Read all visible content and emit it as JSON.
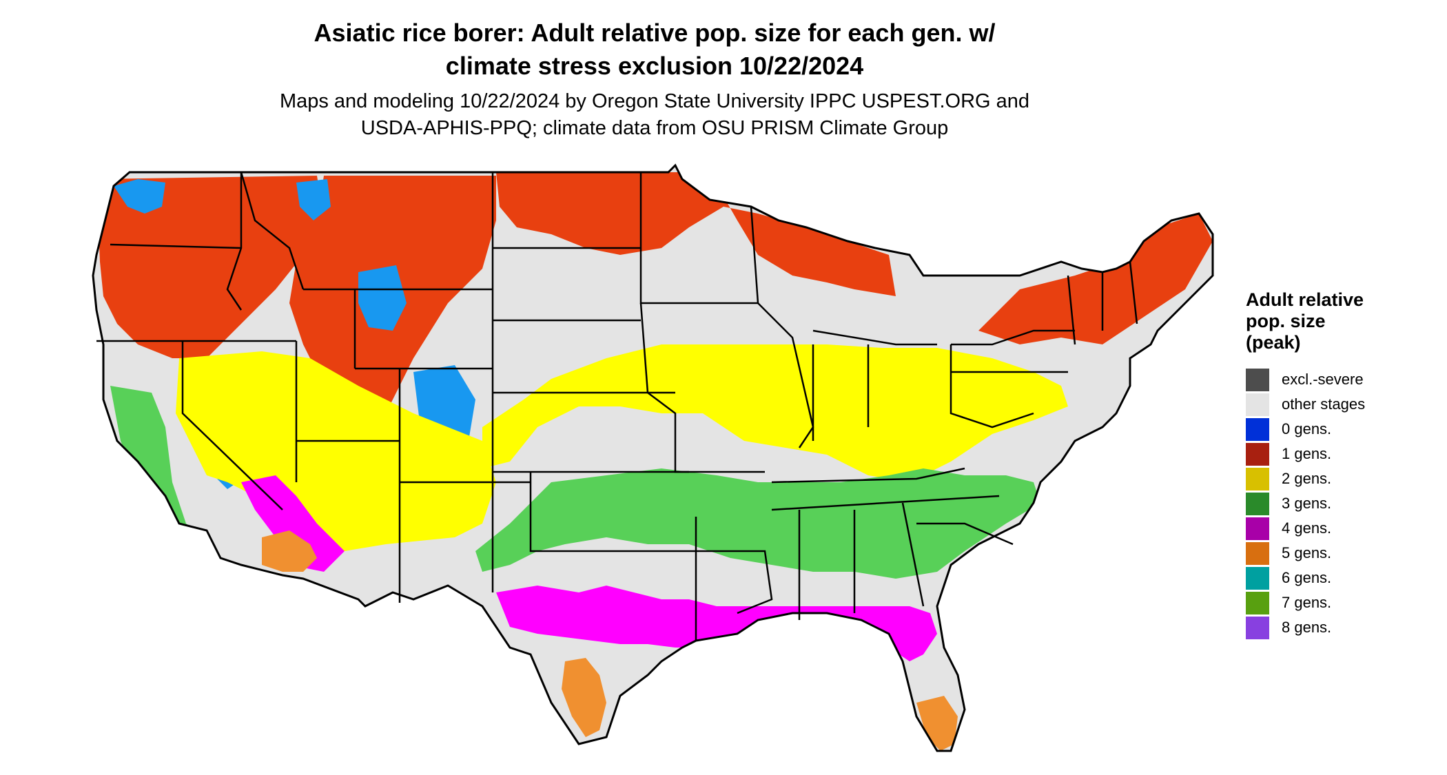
{
  "title": [
    "Asiatic rice borer: Adult relative pop. size for each gen. w/",
    "climate stress exclusion 10/22/2024"
  ],
  "subtitle": [
    "Maps and modeling 10/22/2024 by Oregon State University IPPC USPEST.ORG and",
    "USDA-APHIS-PPQ; climate data from OSU PRISM Climate Group"
  ],
  "legend": {
    "title": [
      "Adult relative",
      "pop. size",
      "(peak)"
    ],
    "items": [
      {
        "label": "excl.-severe",
        "color": "#4d4d4d"
      },
      {
        "label": "other stages",
        "color": "#e4e4e4"
      },
      {
        "label": "0 gens.",
        "color": "#0030d8"
      },
      {
        "label": "1 gens.",
        "color": "#a82010"
      },
      {
        "label": "2 gens.",
        "color": "#d8c000"
      },
      {
        "label": "3 gens.",
        "color": "#2a8a2a"
      },
      {
        "label": "4 gens.",
        "color": "#a800a8"
      },
      {
        "label": "5 gens.",
        "color": "#d86f10"
      },
      {
        "label": "6 gens.",
        "color": "#00a0a0"
      },
      {
        "label": "7 gens.",
        "color": "#58a010"
      },
      {
        "label": "8 gens.",
        "color": "#8840e0"
      }
    ]
  },
  "map_fill_colors": {
    "background_land": "#e4e4e4",
    "gen1": "#e84010",
    "gen0": "#1898f0",
    "gen2": "#ffff00",
    "gen3": "#58d058",
    "gen4": "#ff00ff",
    "gen5": "#f09030",
    "border": "#000000"
  }
}
